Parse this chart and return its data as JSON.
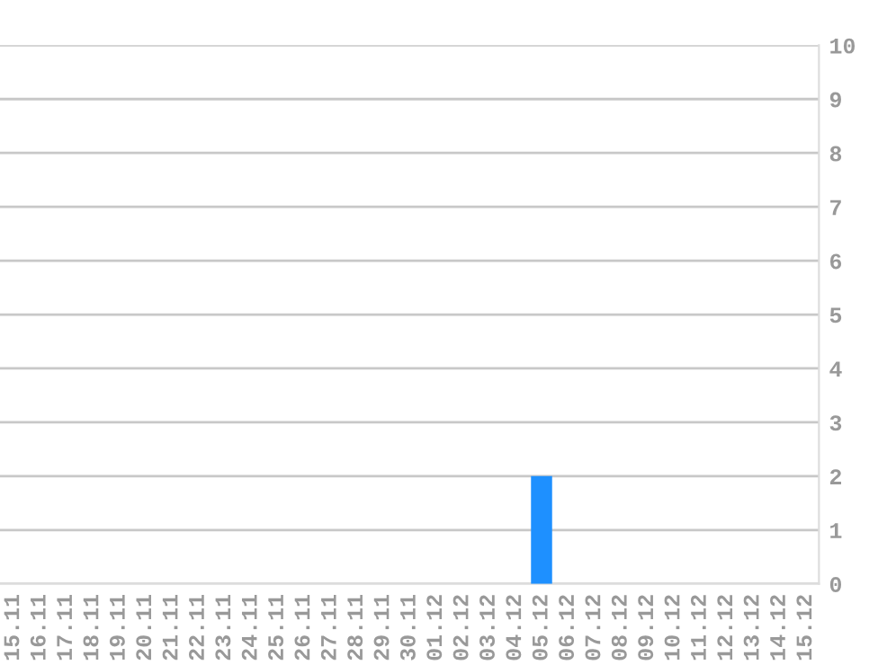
{
  "chart_data": {
    "type": "bar",
    "categories": [
      "15.11",
      "16.11",
      "17.11",
      "18.11",
      "19.11",
      "20.11",
      "21.11",
      "22.11",
      "23.11",
      "24.11",
      "25.11",
      "26.11",
      "27.11",
      "28.11",
      "29.11",
      "30.11",
      "01.12",
      "02.12",
      "03.12",
      "04.12",
      "05.12",
      "06.12",
      "07.12",
      "08.12",
      "09.12",
      "10.12",
      "11.12",
      "12.12",
      "13.12",
      "14.12",
      "15.12"
    ],
    "values": [
      0,
      0,
      0,
      0,
      0,
      0,
      0,
      0,
      0,
      0,
      0,
      0,
      0,
      0,
      0,
      0,
      0,
      0,
      0,
      0,
      2,
      0,
      0,
      0,
      0,
      0,
      0,
      0,
      0,
      0,
      0
    ],
    "color": "#1e90ff",
    "ylim": [
      0,
      10
    ],
    "yticks": [
      0,
      1,
      2,
      3,
      4,
      5,
      6,
      7,
      8,
      9,
      10
    ],
    "grid": "y",
    "legend": false
  }
}
